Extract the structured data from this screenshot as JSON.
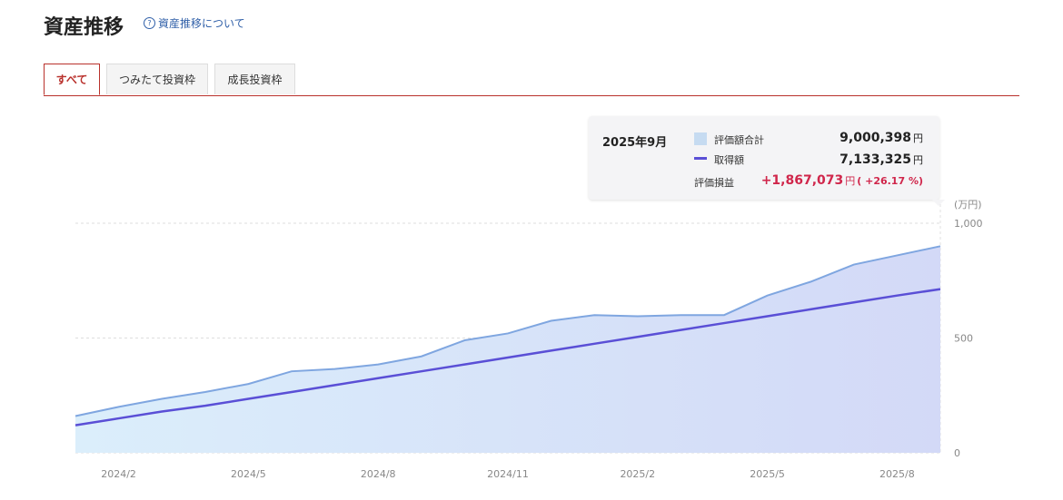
{
  "header": {
    "title": "資産推移",
    "help_icon": "?",
    "help_link": "資産推移について"
  },
  "tabs": [
    {
      "label": "すべて",
      "active": true
    },
    {
      "label": "つみたて投資枠",
      "active": false
    },
    {
      "label": "成長投資枠",
      "active": false
    }
  ],
  "tooltip": {
    "date": "2025年9月",
    "rows": [
      {
        "label": "評価額合計",
        "value": "9,000,398",
        "unit": "円"
      },
      {
        "label": "取得額",
        "value": "7,133,325",
        "unit": "円"
      },
      {
        "label": "評価損益",
        "value": "+1,867,073",
        "unit": "円",
        "pct": "( +26.17 %)"
      }
    ]
  },
  "colors": {
    "accent": "#b9312c",
    "area_line": "#7fa6e0",
    "cost_line": "#5a4fd6",
    "profit": "#d0264b"
  },
  "chart_data": {
    "type": "area",
    "unit": "(万円)",
    "ylim": [
      0,
      1000
    ],
    "yticks": [
      "1,000",
      "500",
      "0"
    ],
    "ytick_values": [
      1000,
      500,
      0
    ],
    "xtick_labels": [
      "2024/2",
      "2024/5",
      "2024/8",
      "2024/11",
      "2025/2",
      "2025/5",
      "2025/8"
    ],
    "x": [
      "2024/1",
      "2024/2",
      "2024/3",
      "2024/4",
      "2024/5",
      "2024/6",
      "2024/7",
      "2024/8",
      "2024/9",
      "2024/10",
      "2024/11",
      "2024/12",
      "2025/1",
      "2025/2",
      "2025/3",
      "2025/4",
      "2025/5",
      "2025/6",
      "2025/7",
      "2025/8",
      "2025/9"
    ],
    "series": [
      {
        "name": "評価額合計",
        "style": "area",
        "values": [
          160,
          200,
          235,
          265,
          300,
          355,
          365,
          385,
          420,
          490,
          520,
          575,
          600,
          595,
          600,
          600,
          685,
          745,
          820,
          860,
          900
        ]
      },
      {
        "name": "取得額",
        "style": "line",
        "values": [
          120,
          150,
          180,
          205,
          235,
          265,
          295,
          325,
          355,
          385,
          415,
          445,
          475,
          505,
          535,
          565,
          595,
          625,
          655,
          685,
          713
        ]
      }
    ],
    "grid": true
  }
}
